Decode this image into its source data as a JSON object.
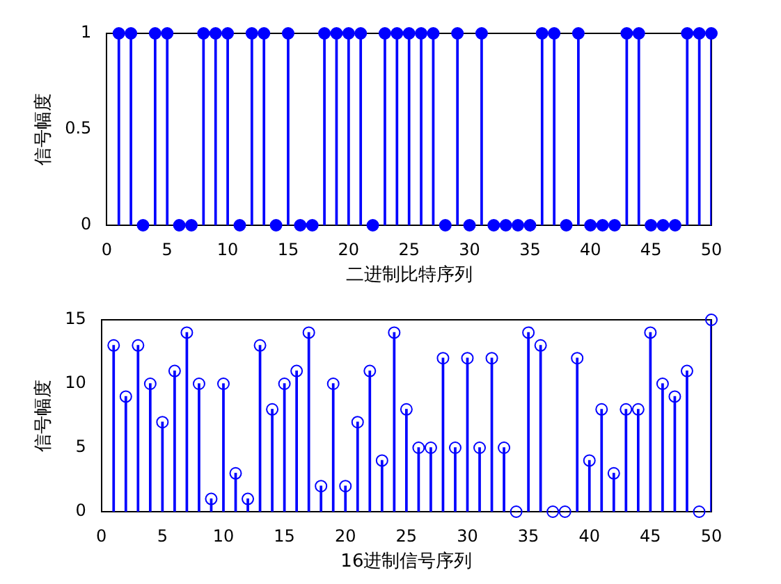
{
  "chart_data": [
    {
      "type": "lollipop",
      "xlabel": "二进制比特序列",
      "ylabel": "信号幅度",
      "x": [
        1,
        2,
        3,
        4,
        5,
        6,
        7,
        8,
        9,
        10,
        11,
        12,
        13,
        14,
        15,
        16,
        17,
        18,
        19,
        20,
        21,
        22,
        23,
        24,
        25,
        26,
        27,
        28,
        29,
        30,
        31,
        32,
        33,
        34,
        35,
        36,
        37,
        38,
        39,
        40,
        41,
        42,
        43,
        44,
        45,
        46,
        47,
        48,
        49,
        50
      ],
      "series": [
        {
          "color": "#0000ff",
          "values": [
            1,
            1,
            0,
            1,
            1,
            0,
            0,
            1,
            1,
            1,
            0,
            1,
            1,
            0,
            1,
            0,
            0,
            1,
            1,
            1,
            1,
            0,
            1,
            1,
            1,
            1,
            1,
            0,
            1,
            0,
            1,
            0,
            0,
            0,
            0,
            1,
            1,
            0,
            1,
            0,
            0,
            0,
            1,
            1,
            0,
            0,
            0,
            1,
            1,
            1
          ]
        }
      ],
      "xlim": [
        0,
        50
      ],
      "xticks": [
        0,
        5,
        10,
        15,
        20,
        25,
        30,
        35,
        40,
        45,
        50
      ],
      "ylim": [
        0,
        1
      ],
      "yticks": [
        0,
        0.5,
        1
      ],
      "marker": "circle",
      "legend": false,
      "grid": false
    },
    {
      "type": "lollipop",
      "xlabel": "16进制信号序列",
      "ylabel": "信号幅度",
      "x": [
        1,
        2,
        3,
        4,
        5,
        6,
        7,
        8,
        9,
        10,
        11,
        12,
        13,
        14,
        15,
        16,
        17,
        18,
        19,
        20,
        21,
        22,
        23,
        24,
        25,
        26,
        27,
        28,
        29,
        30,
        31,
        32,
        33,
        34,
        35,
        36,
        37,
        38,
        39,
        40,
        41,
        42,
        43,
        44,
        45,
        46,
        47,
        48,
        49,
        50
      ],
      "series": [
        {
          "color": "#0000ff",
          "values": [
            13,
            9,
            13,
            10,
            7,
            11,
            14,
            10,
            1,
            10,
            3,
            1,
            13,
            8,
            10,
            11,
            14,
            2,
            10,
            2,
            7,
            11,
            4,
            14,
            8,
            5,
            5,
            12,
            5,
            12,
            5,
            12,
            5,
            0,
            14,
            13,
            0,
            0,
            12,
            4,
            8,
            3,
            8,
            8,
            14,
            10,
            9,
            11,
            0,
            15
          ]
        }
      ],
      "xlim": [
        0,
        50
      ],
      "xticks": [
        0,
        5,
        10,
        15,
        20,
        25,
        30,
        35,
        40,
        45,
        50
      ],
      "ylim": [
        0,
        15
      ],
      "yticks": [
        0,
        5,
        10,
        15
      ],
      "marker": "circle",
      "legend": false,
      "grid": false
    }
  ]
}
